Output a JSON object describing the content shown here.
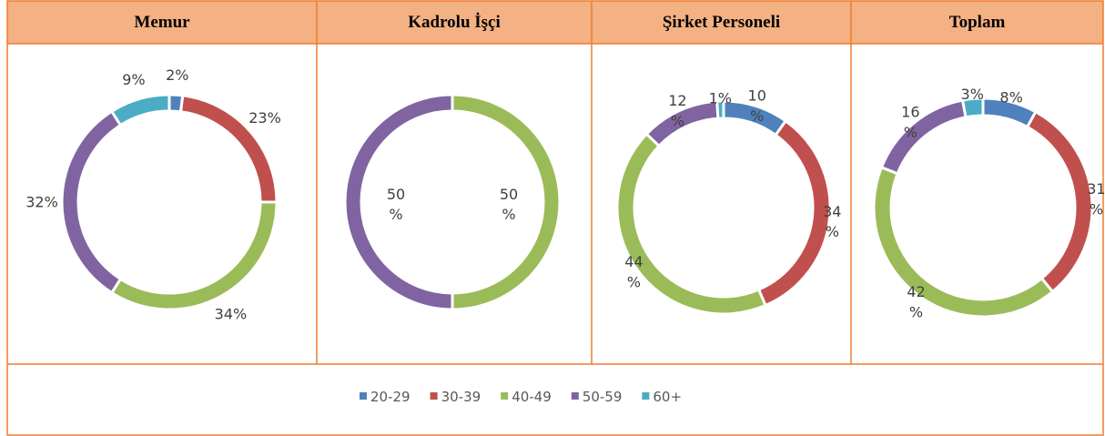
{
  "chart_data": [
    {
      "type": "donut",
      "title": "Memur",
      "categories": [
        "20-29",
        "30-39",
        "40-49",
        "50-59",
        "60+"
      ],
      "values": [
        2,
        23,
        34,
        32,
        9
      ],
      "value_labels": [
        "2%",
        "23%",
        "34%",
        "32%",
        "9%"
      ],
      "colors": [
        "#4f81bd",
        "#c0504d",
        "#9bbb59",
        "#8064a2",
        "#4bacc6"
      ]
    },
    {
      "type": "donut",
      "title": "Kadrolu İşçi",
      "categories": [
        "40-49",
        "50-59"
      ],
      "values": [
        50,
        50
      ],
      "value_labels": [
        "50 %",
        "50 %"
      ],
      "colors": [
        "#9bbb59",
        "#8064a2"
      ]
    },
    {
      "type": "donut",
      "title": "Şirket Personeli",
      "categories": [
        "20-29",
        "30-39",
        "40-49",
        "50-59",
        "60+"
      ],
      "values": [
        10,
        34,
        44,
        12,
        1
      ],
      "value_labels": [
        "10 %",
        "34 %",
        "44 %",
        "12 %",
        "1%"
      ],
      "colors": [
        "#4f81bd",
        "#c0504d",
        "#9bbb59",
        "#8064a2",
        "#4bacc6"
      ]
    },
    {
      "type": "donut",
      "title": "Toplam",
      "categories": [
        "20-29",
        "30-39",
        "40-49",
        "50-59",
        "60+"
      ],
      "values": [
        8,
        31,
        42,
        16,
        3
      ],
      "value_labels": [
        "8%",
        "31 %",
        "42 %",
        "16 %",
        "3%"
      ],
      "colors": [
        "#4f81bd",
        "#c0504d",
        "#9bbb59",
        "#8064a2",
        "#4bacc6"
      ]
    }
  ]
}
